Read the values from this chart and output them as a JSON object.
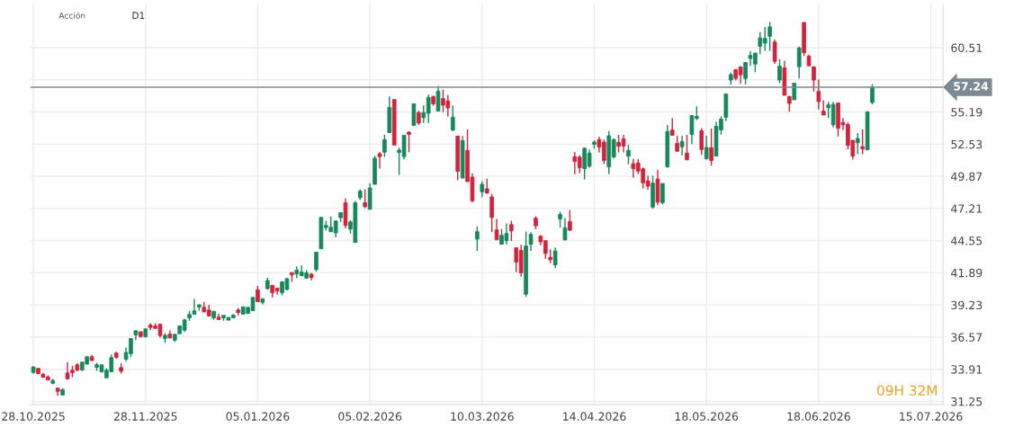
{
  "chart_data": {
    "type": "candlestick",
    "annotations": [
      "Acción",
      "D1",
      "09H 32M"
    ],
    "categories": [
      "28.10.2025",
      null,
      null,
      null,
      null,
      null,
      null,
      null,
      null,
      null,
      null,
      null,
      null,
      null,
      null,
      null,
      null,
      null,
      null,
      null,
      null,
      null,
      null,
      "28.11.2025",
      null,
      null,
      null,
      null,
      null,
      null,
      null,
      null,
      null,
      null,
      null,
      null,
      null,
      null,
      null,
      null,
      null,
      null,
      null,
      null,
      null,
      null,
      "05.01.2026",
      null,
      null,
      null,
      null,
      null,
      null,
      null,
      null,
      null,
      null,
      null,
      null,
      null,
      null,
      null,
      null,
      null,
      null,
      null,
      null,
      null,
      null,
      "05.02.2026",
      null,
      null,
      null,
      null,
      null,
      null,
      null,
      null,
      null,
      null,
      null,
      null,
      null,
      null,
      null,
      null,
      null,
      null,
      null,
      null,
      null,
      null,
      "10.03.2026",
      null,
      null,
      null,
      null,
      null,
      null,
      null,
      null,
      null,
      null,
      null,
      null,
      null,
      null,
      null,
      null,
      null,
      null,
      null,
      null,
      null,
      null,
      "14.04.2026",
      null,
      null,
      null,
      null,
      null,
      null,
      null,
      null,
      null,
      null,
      null,
      null,
      null,
      null,
      null,
      null,
      null,
      null,
      null,
      null,
      null,
      null,
      "18.05.2026",
      null,
      null,
      null,
      null,
      null,
      null,
      null,
      null,
      null,
      null,
      null,
      null,
      null,
      null,
      null,
      null,
      null,
      null,
      null,
      null,
      null,
      null,
      "18.06.2026",
      null,
      null,
      null,
      null,
      null,
      null,
      null,
      null,
      null,
      null,
      null,
      null,
      null,
      null,
      null,
      null,
      null,
      null,
      null,
      null,
      null,
      null,
      "15.07.2026",
      null,
      null
    ],
    "ohlc": [
      [
        33.65,
        34.15,
        33.55,
        34.1
      ],
      [
        33.98,
        34.0,
        33.5,
        33.55
      ],
      [
        33.5,
        33.6,
        33.2,
        33.25
      ],
      [
        33.28,
        33.4,
        33.0,
        33.02
      ],
      [
        32.75,
        33.1,
        32.68,
        32.98
      ],
      [
        32.35,
        32.35,
        31.71,
        32.08
      ],
      [
        31.78,
        32.35,
        31.78,
        32.23
      ],
      [
        33.6,
        34.5,
        33.05,
        33.12
      ],
      [
        33.83,
        34.2,
        33.25,
        33.63
      ],
      [
        34.28,
        34.43,
        33.75,
        33.83
      ],
      [
        33.85,
        34.5,
        33.78,
        34.5
      ],
      [
        34.33,
        34.95,
        34.33,
        34.95
      ],
      [
        34.95,
        35.1,
        34.6,
        34.63
      ],
      [
        34.08,
        34.45,
        33.78,
        34.28
      ],
      [
        33.7,
        34.28,
        33.65,
        34.28
      ],
      [
        33.2,
        34.0,
        33.2,
        33.83
      ],
      [
        33.7,
        35.13,
        33.7,
        34.88
      ],
      [
        35.25,
        35.35,
        34.8,
        34.9
      ],
      [
        34.05,
        34.38,
        33.55,
        33.75
      ],
      [
        34.75,
        35.7,
        34.58,
        35.3
      ],
      [
        35.2,
        36.45,
        34.95,
        36.45
      ],
      [
        36.75,
        37.1,
        36.32,
        37.1
      ],
      [
        37.02,
        37.02,
        36.52,
        36.62
      ],
      [
        36.6,
        37.25,
        36.55,
        37.25
      ],
      [
        37.57,
        37.72,
        37.15,
        37.37
      ],
      [
        37.49,
        37.72,
        37.29,
        37.29
      ],
      [
        37.65,
        37.65,
        36.52,
        36.7
      ],
      [
        36.45,
        36.9,
        36.1,
        36.72
      ],
      [
        36.82,
        37.12,
        36.45,
        36.5
      ],
      [
        36.32,
        36.8,
        36.17,
        36.8
      ],
      [
        36.85,
        37.55,
        36.85,
        37.49
      ],
      [
        37.15,
        38.09,
        36.99,
        37.99
      ],
      [
        38.17,
        38.74,
        37.92,
        38.44
      ],
      [
        38.47,
        39.72,
        38.47,
        38.74
      ],
      [
        39.06,
        39.25,
        38.76,
        39.25
      ],
      [
        39.03,
        39.48,
        38.61,
        38.66
      ],
      [
        38.81,
        39.25,
        38.32,
        38.32
      ],
      [
        38.17,
        38.71,
        38.02,
        38.71
      ],
      [
        38.22,
        38.49,
        38.02,
        38.02
      ],
      [
        38.17,
        38.37,
        37.92,
        38.37
      ],
      [
        37.97,
        38.2,
        37.97,
        38.2
      ],
      [
        38.17,
        38.47,
        38.17,
        38.39
      ],
      [
        38.81,
        38.98,
        38.37,
        38.61
      ],
      [
        38.47,
        39.08,
        38.47,
        39.08
      ],
      [
        38.54,
        39.03,
        38.54,
        39.03
      ],
      [
        38.76,
        39.9,
        38.76,
        39.85
      ],
      [
        40.49,
        40.81,
        39.5,
        39.5
      ],
      [
        39.45,
        39.75,
        39.28,
        39.75
      ],
      [
        40.58,
        41.47,
        40.49,
        41.25
      ],
      [
        40.86,
        40.86,
        39.85,
        40.24
      ],
      [
        40.63,
        40.63,
        40.09,
        40.39
      ],
      [
        40.24,
        41.15,
        40.02,
        41.15
      ],
      [
        40.51,
        41.47,
        40.44,
        41.4
      ],
      [
        41.91,
        41.91,
        41.13,
        41.72
      ],
      [
        41.79,
        42.43,
        41.45,
        42.11
      ],
      [
        41.64,
        42.51,
        41.64,
        41.96
      ],
      [
        41.45,
        42.11,
        41.45,
        41.89
      ],
      [
        41.77,
        41.89,
        41.27,
        41.5
      ],
      [
        42.16,
        43.59,
        41.99,
        43.59
      ],
      [
        43.88,
        46.47,
        43.88,
        46.47
      ],
      [
        45.63,
        46.18,
        45.39,
        45.81
      ],
      [
        45.29,
        46.54,
        45.29,
        45.66
      ],
      [
        45.19,
        46.18,
        44.82,
        46.18
      ],
      [
        46.45,
        46.87,
        46.08,
        46.87
      ],
      [
        47.68,
        48.05,
        45.56,
        45.81
      ],
      [
        45.51,
        46.23,
        45.14,
        46.1
      ],
      [
        44.4,
        47.83,
        44.4,
        47.68
      ],
      [
        48.1,
        48.79,
        47.92,
        48.64
      ],
      [
        47.68,
        48.79,
        47.24,
        47.36
      ],
      [
        47.14,
        49.31,
        47.14,
        48.91
      ],
      [
        49.2,
        51.57,
        49.2,
        51.37
      ],
      [
        51.74,
        51.89,
        50.51,
        51.5
      ],
      [
        51.87,
        53.29,
        51.47,
        52.9
      ],
      [
        53.49,
        56.47,
        53.49,
        55.56
      ],
      [
        56.22,
        56.22,
        52.46,
        52.46
      ],
      [
        51.84,
        52.24,
        49.99,
        52.04
      ],
      [
        51.5,
        53.27,
        51.27,
        53.27
      ],
      [
        53.52,
        53.59,
        51.84,
        53.34
      ],
      [
        54.08,
        55.86,
        54.08,
        55.86
      ],
      [
        55.14,
        55.29,
        54.13,
        54.28
      ],
      [
        54.72,
        55.73,
        54.28,
        55.14
      ],
      [
        55.09,
        56.62,
        54.28,
        56.4
      ],
      [
        56.45,
        56.55,
        55.71,
        55.86
      ],
      [
        55.27,
        57.36,
        55.27,
        56.91
      ],
      [
        56.3,
        57.04,
        55.17,
        55.76
      ],
      [
        56.1,
        56.59,
        54.8,
        55.53
      ],
      [
        53.69,
        55.73,
        53.61,
        54.77
      ],
      [
        53.2,
        53.2,
        49.55,
        50.29
      ],
      [
        49.72,
        53.2,
        49.72,
        52.83
      ],
      [
        52.01,
        53.74,
        49.43,
        49.43
      ],
      [
        49.8,
        50.12,
        47.7,
        47.85
      ],
      [
        44.67,
        45.73,
        43.71,
        45.29
      ],
      [
        48.59,
        49.45,
        48.15,
        49.21
      ],
      [
        48.84,
        49.67,
        48.47,
        48.47
      ],
      [
        48.17,
        48.42,
        45.26,
        46.47
      ],
      [
        45.44,
        46.35,
        44.62,
        44.62
      ],
      [
        44.25,
        45.53,
        44.25,
        44.99
      ],
      [
        44.55,
        45.98,
        44.23,
        45.14
      ],
      [
        45.88,
        46.2,
        44.52,
        45.36
      ],
      [
        43.96,
        43.96,
        41.94,
        42.78
      ],
      [
        43.74,
        44.2,
        41.57,
        41.89
      ],
      [
        40.12,
        45.31,
        39.9,
        44.11
      ],
      [
        44.25,
        45.24,
        43.71,
        45.07
      ],
      [
        46.4,
        46.57,
        45.49,
        45.78
      ],
      [
        44.92,
        45.0,
        44.16,
        44.45
      ],
      [
        44.55,
        44.55,
        43.05,
        43.49
      ],
      [
        43.17,
        43.84,
        42.68,
        42.97
      ],
      [
        42.55,
        43.98,
        42.3,
        43.69
      ],
      [
        46.35,
        46.94,
        45.63,
        46.72
      ],
      [
        44.6,
        46.42,
        44.6,
        45.61
      ],
      [
        46.13,
        47.09,
        45.34,
        45.41
      ],
      [
        51.5,
        51.89,
        50.05,
        51.1
      ],
      [
        51.45,
        51.6,
        50.14,
        50.58
      ],
      [
        50.51,
        52.26,
        49.62,
        52.19
      ],
      [
        50.71,
        52.09,
        50.58,
        51.79
      ],
      [
        52.51,
        52.85,
        52.14,
        52.7
      ],
      [
        52.9,
        53.15,
        51.84,
        52.29
      ],
      [
        52.7,
        52.92,
        50.88,
        51.18
      ],
      [
        50.66,
        53.61,
        50.07,
        53.22
      ],
      [
        51.47,
        53.0,
        51.35,
        52.92
      ],
      [
        52.68,
        53.29,
        51.84,
        52.36
      ],
      [
        52.97,
        53.29,
        51.84,
        52.38
      ],
      [
        51.54,
        52.48,
        50.88,
        52.01
      ],
      [
        50.9,
        51.3,
        49.77,
        50.51
      ],
      [
        50.98,
        51.3,
        50.07,
        50.31
      ],
      [
        50.49,
        50.61,
        48.88,
        49.33
      ],
      [
        49.5,
        49.94,
        48.76,
        49.06
      ],
      [
        47.33,
        49.94,
        47.18,
        49.3
      ],
      [
        49.65,
        50.41,
        47.48,
        47.73
      ],
      [
        47.7,
        49.28,
        47.55,
        49.28
      ],
      [
        50.66,
        54.11,
        50.58,
        53.57
      ],
      [
        53.71,
        54.7,
        53.27,
        53.27
      ],
      [
        52.6,
        53.22,
        51.94,
        51.94
      ],
      [
        52.31,
        53.22,
        51.59,
        52.75
      ],
      [
        51.79,
        53.29,
        51.18,
        51.25
      ],
      [
        53.34,
        54.9,
        52.53,
        54.9
      ],
      [
        54.65,
        55.66,
        54.53,
        54.82
      ],
      [
        53.64,
        53.86,
        51.64,
        52.09
      ],
      [
        51.32,
        53.22,
        51.25,
        52.26
      ],
      [
        52.24,
        53.81,
        50.76,
        51.18
      ],
      [
        51.54,
        54.4,
        51.54,
        54.01
      ],
      [
        53.71,
        54.85,
        53.32,
        54.6
      ],
      [
        54.75,
        56.69,
        54.43,
        56.69
      ],
      [
        57.83,
        58.44,
        57.46,
        58.29
      ],
      [
        58.69,
        58.74,
        57.8,
        57.97
      ],
      [
        58.91,
        58.98,
        57.51,
        58.27
      ],
      [
        57.97,
        59.28,
        57.46,
        59.28
      ],
      [
        59.62,
        60.24,
        59.01,
        59.87
      ],
      [
        59.16,
        60.07,
        58.49,
        60.07
      ],
      [
        60.63,
        61.79,
        59.97,
        61.32
      ],
      [
        60.88,
        62.23,
        60.26,
        61.27
      ],
      [
        61.45,
        62.63,
        60.26,
        62.23
      ],
      [
        60.98,
        61.2,
        59.18,
        59.38
      ],
      [
        57.83,
        59.57,
        57.6,
        58.98
      ],
      [
        58.84,
        59.43,
        56.57,
        56.57
      ],
      [
        56.47,
        56.54,
        55.21,
        55.9
      ],
      [
        56.2,
        57.58,
        56.2,
        57.58
      ],
      [
        58.93,
        60.61,
        57.97,
        60.49
      ],
      [
        62.6,
        62.6,
        59.82,
        60.09
      ],
      [
        59.8,
        59.94,
        59.01,
        59.01
      ],
      [
        58.91,
        58.98,
        56.89,
        57.83
      ],
      [
        56.89,
        57.88,
        55.39,
        56.05
      ],
      [
        55.26,
        56.17,
        54.94,
        54.94
      ],
      [
        55.54,
        56.03,
        54.7,
        55.78
      ],
      [
        54.13,
        56.03,
        53.91,
        55.81
      ],
      [
        55.93,
        55.93,
        53.17,
        53.84
      ],
      [
        54.33,
        54.7,
        53.69,
        54.13
      ],
      [
        54.16,
        54.33,
        52.11,
        52.43
      ],
      [
        52.85,
        52.85,
        51.25,
        51.54
      ],
      [
        52.65,
        53.44,
        51.69,
        53.0
      ],
      [
        52.33,
        53.74,
        51.69,
        52.14
      ],
      [
        52.06,
        55.26,
        52.06,
        55.19
      ],
      [
        55.98,
        57.48,
        55.83,
        57.24
      ],
      null,
      null,
      null,
      null,
      null,
      null,
      null,
      null,
      null,
      null,
      null,
      null,
      null,
      null
    ],
    "colors": [
      "#15885c",
      "#d2223c",
      "#d2223c",
      "#d2223c",
      "#15885c",
      "#d2223c",
      "#15885c",
      "#d2223c",
      "#d2223c",
      "#d2223c",
      "#15885c",
      "#15885c",
      "#d2223c",
      "#15885c",
      "#15885c",
      "#15885c",
      "#15885c",
      "#d2223c",
      "#d2223c",
      "#15885c",
      "#15885c",
      "#15885c",
      "#d2223c",
      "#15885c",
      "#d2223c",
      "#d2223c",
      "#d2223c",
      "#15885c",
      "#d2223c",
      "#15885c",
      "#15885c",
      "#15885c",
      "#15885c",
      "#15885c",
      "#15885c",
      "#d2223c",
      "#d2223c",
      "#15885c",
      "#d2223c",
      "#15885c",
      "#15885c",
      "#15885c",
      "#d2223c",
      "#15885c",
      "#15885c",
      "#15885c",
      "#d2223c",
      "#15885c",
      "#15885c",
      "#d2223c",
      "#d2223c",
      "#15885c",
      "#15885c",
      "#d2223c",
      "#15885c",
      "#15885c",
      "#15885c",
      "#d2223c",
      "#15885c",
      "#15885c",
      "#15885c",
      "#15885c",
      "#15885c",
      "#15885c",
      "#d2223c",
      "#15885c",
      "#15885c",
      "#15885c",
      "#d2223c",
      "#15885c",
      "#15885c",
      "#d2223c",
      "#15885c",
      "#15885c",
      "#d2223c",
      "#15885c",
      "#15885c",
      "#d2223c",
      "#15885c",
      "#d2223c",
      "#15885c",
      "#15885c",
      "#d2223c",
      "#15885c",
      "#d2223c",
      "#d2223c",
      "#15885c",
      "#d2223c",
      "#15885c",
      "#d2223c",
      "#d2223c",
      "#15885c",
      "#15885c",
      "#d2223c",
      "#d2223c",
      "#d2223c",
      "#15885c",
      "#15885c",
      "#d2223c",
      "#d2223c",
      "#d2223c",
      "#15885c",
      "#15885c",
      "#d2223c",
      "#d2223c",
      "#d2223c",
      "#d2223c",
      "#15885c",
      "#15885c",
      "#15885c",
      "#d2223c",
      "#d2223c",
      "#d2223c",
      "#15885c",
      "#15885c",
      "#15885c",
      "#d2223c",
      "#d2223c",
      "#15885c",
      "#15885c",
      "#d2223c",
      "#d2223c",
      "#15885c",
      "#d2223c",
      "#d2223c",
      "#d2223c",
      "#d2223c",
      "#15885c",
      "#d2223c",
      "#15885c",
      "#15885c",
      "#d2223c",
      "#d2223c",
      "#15885c",
      "#d2223c",
      "#15885c",
      "#15885c",
      "#d2223c",
      "#15885c",
      "#d2223c",
      "#15885c",
      "#15885c",
      "#15885c",
      "#15885c",
      "#d2223c",
      "#d2223c",
      "#15885c",
      "#15885c",
      "#15885c",
      "#15885c",
      "#15885c",
      "#15885c",
      "#d2223c",
      "#15885c",
      "#d2223c",
      "#d2223c",
      "#15885c",
      "#15885c",
      "#d2223c",
      "#d2223c",
      "#d2223c",
      "#d2223c",
      "#d2223c",
      "#15885c",
      "#15885c",
      "#d2223c",
      "#d2223c",
      "#d2223c",
      "#d2223c",
      "#15885c",
      "#d2223c",
      "#15885c",
      "#15885c",
      null,
      null,
      null,
      null,
      null,
      null,
      null,
      null,
      null,
      null,
      null,
      null,
      null,
      null
    ],
    "ylim": [
      31.0,
      64.1
    ],
    "yticks": [
      31.25,
      33.91,
      36.57,
      39.23,
      41.89,
      44.55,
      47.21,
      49.87,
      52.53,
      55.19,
      {
        "value": 57.85,
        "label": null
      },
      60.51
    ],
    "ref_lines": [
      {
        "axis": "y",
        "value": 57.24,
        "label": "57.24",
        "color": "#7d8a94"
      }
    ],
    "grid": true
  }
}
